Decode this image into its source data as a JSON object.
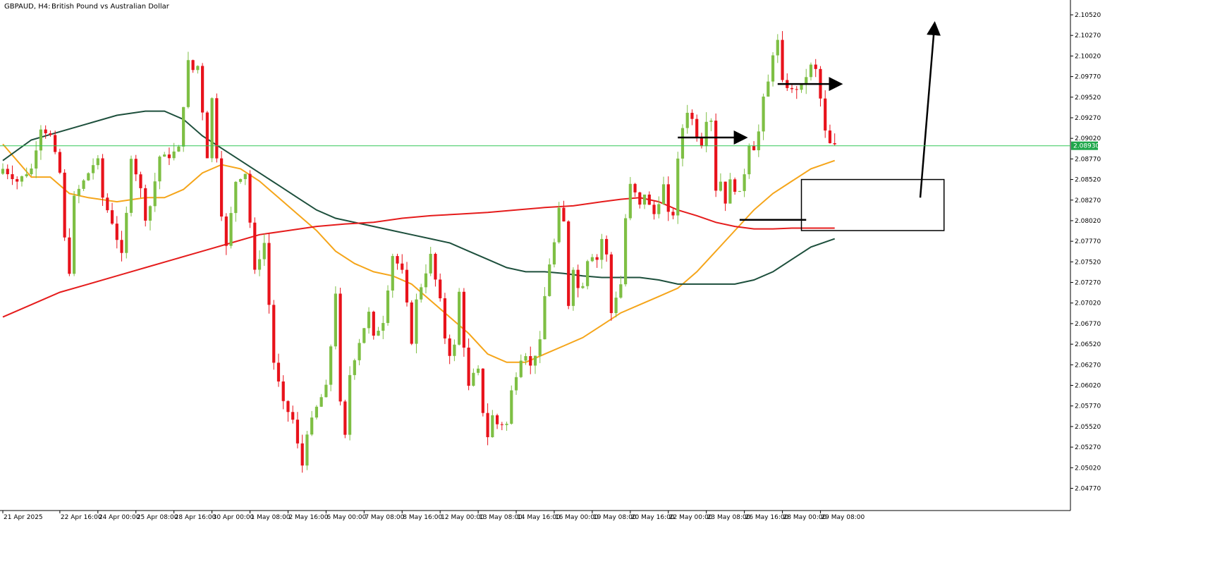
{
  "header": {
    "symbol_label": "GBPAUD, H4:",
    "description": "British Pound vs Australian Dollar"
  },
  "colors": {
    "bull": "#7ebf44",
    "bear": "#e8121b",
    "ma_fast": "#f5a51a",
    "ma_mid": "#1d4f3c",
    "ma_slow": "#e51c1c",
    "current_line": "#34c759",
    "current_tag": "#1fa74b",
    "axis": "#000000",
    "annotation": "#000000"
  },
  "chart_data": {
    "type": "candlestick",
    "title": "GBPAUD, H4: British Pound vs Australian Dollar",
    "ylim": [
      2.045,
      2.107
    ],
    "xlim": [
      0,
      224
    ],
    "grid": false,
    "current_price": 2.0893,
    "current_price_label": "2.08930",
    "y_ticks": [
      {
        "value": 2.1052,
        "label": "2.10520"
      },
      {
        "value": 2.1027,
        "label": "2.10270"
      },
      {
        "value": 2.1002,
        "label": "2.10020"
      },
      {
        "value": 2.0977,
        "label": "2.09770"
      },
      {
        "value": 2.0952,
        "label": "2.09520"
      },
      {
        "value": 2.0927,
        "label": "2.09270"
      },
      {
        "value": 2.0902,
        "label": "2.09020"
      },
      {
        "value": 2.0877,
        "label": "2.08770"
      },
      {
        "value": 2.0852,
        "label": "2.08520"
      },
      {
        "value": 2.0827,
        "label": "2.08270"
      },
      {
        "value": 2.0802,
        "label": "2.08020"
      },
      {
        "value": 2.0777,
        "label": "2.07770"
      },
      {
        "value": 2.0752,
        "label": "2.07520"
      },
      {
        "value": 2.0727,
        "label": "2.07270"
      },
      {
        "value": 2.0702,
        "label": "2.07020"
      },
      {
        "value": 2.0677,
        "label": "2.06770"
      },
      {
        "value": 2.0652,
        "label": "2.06520"
      },
      {
        "value": 2.0627,
        "label": "2.06270"
      },
      {
        "value": 2.0602,
        "label": "2.06020"
      },
      {
        "value": 2.0577,
        "label": "2.05770"
      },
      {
        "value": 2.0552,
        "label": "2.05520"
      },
      {
        "value": 2.0527,
        "label": "2.05270"
      },
      {
        "value": 2.0502,
        "label": "2.05020"
      },
      {
        "value": 2.0477,
        "label": "2.04770"
      }
    ],
    "x_ticks": [
      {
        "index": 0,
        "label": "21 Apr 2025"
      },
      {
        "index": 12,
        "label": "22 Apr 16:00"
      },
      {
        "index": 20,
        "label": "24 Apr 00:00"
      },
      {
        "index": 28,
        "label": "25 Apr 08:00"
      },
      {
        "index": 36,
        "label": "28 Apr 16:00"
      },
      {
        "index": 44,
        "label": "30 Apr 00:00"
      },
      {
        "index": 52,
        "label": "1 May 08:00"
      },
      {
        "index": 60,
        "label": "2 May 16:00"
      },
      {
        "index": 68,
        "label": "6 May 00:00"
      },
      {
        "index": 76,
        "label": "7 May 08:00"
      },
      {
        "index": 84,
        "label": "8 May 16:00"
      },
      {
        "index": 92,
        "label": "12 May 00:00"
      },
      {
        "index": 100,
        "label": "13 May 08:00"
      },
      {
        "index": 108,
        "label": "14 May 16:00"
      },
      {
        "index": 116,
        "label": "16 May 00:00"
      },
      {
        "index": 124,
        "label": "19 May 08:00"
      },
      {
        "index": 132,
        "label": "20 May 16:00"
      },
      {
        "index": 140,
        "label": "22 May 00:00"
      },
      {
        "index": 148,
        "label": "23 May 08:00"
      },
      {
        "index": 156,
        "label": "26 May 16:00"
      },
      {
        "index": 164,
        "label": "28 May 00:00"
      },
      {
        "index": 172,
        "label": "29 May 08:00"
      }
    ],
    "price_path": [
      [
        0,
        2.0865
      ],
      [
        3,
        2.085
      ],
      [
        6,
        2.0865
      ],
      [
        8,
        2.0915
      ],
      [
        10,
        2.0905
      ],
      [
        12,
        2.086
      ],
      [
        13,
        2.078
      ],
      [
        14,
        2.074
      ],
      [
        15,
        2.083
      ],
      [
        17,
        2.085
      ],
      [
        19,
        2.087
      ],
      [
        20,
        2.0875
      ],
      [
        21,
        2.083
      ],
      [
        23,
        2.08
      ],
      [
        25,
        2.076
      ],
      [
        26,
        2.081
      ],
      [
        27,
        2.088
      ],
      [
        29,
        2.084
      ],
      [
        30,
        2.0805
      ],
      [
        31,
        2.082
      ],
      [
        33,
        2.088
      ],
      [
        35,
        2.088
      ],
      [
        37,
        2.089
      ],
      [
        39,
        2.0995
      ],
      [
        40,
        2.0985
      ],
      [
        41,
        2.099
      ],
      [
        43,
        2.088
      ],
      [
        44,
        2.095
      ],
      [
        45,
        2.088
      ],
      [
        46,
        2.081
      ],
      [
        47,
        2.077
      ],
      [
        49,
        2.085
      ],
      [
        51,
        2.086
      ],
      [
        52,
        2.08
      ],
      [
        53,
        2.074
      ],
      [
        55,
        2.0775
      ],
      [
        56,
        2.07
      ],
      [
        57,
        2.063
      ],
      [
        59,
        2.058
      ],
      [
        61,
        2.056
      ],
      [
        62,
        2.053
      ],
      [
        63,
        2.0505
      ],
      [
        64,
        2.0545
      ],
      [
        66,
        2.0575
      ],
      [
        68,
        2.06
      ],
      [
        69,
        2.065
      ],
      [
        70,
        2.0715
      ],
      [
        71,
        2.058
      ],
      [
        72,
        2.054
      ],
      [
        73,
        2.0615
      ],
      [
        75,
        2.0655
      ],
      [
        77,
        2.069
      ],
      [
        78,
        2.066
      ],
      [
        80,
        2.068
      ],
      [
        82,
        2.076
      ],
      [
        84,
        2.074
      ],
      [
        85,
        2.07
      ],
      [
        86,
        2.0655
      ],
      [
        87,
        2.0705
      ],
      [
        89,
        2.074
      ],
      [
        90,
        2.076
      ],
      [
        91,
        2.073
      ],
      [
        92,
        2.0705
      ],
      [
        93,
        2.066
      ],
      [
        94,
        2.064
      ],
      [
        95,
        2.065
      ],
      [
        96,
        2.0715
      ],
      [
        97,
        2.065
      ],
      [
        98,
        2.06
      ],
      [
        99,
        2.0615
      ],
      [
        100,
        2.062
      ],
      [
        101,
        2.057
      ],
      [
        102,
        2.054
      ],
      [
        103,
        2.0565
      ],
      [
        104,
        2.0555
      ],
      [
        106,
        2.0555
      ],
      [
        107,
        2.0595
      ],
      [
        109,
        2.0635
      ],
      [
        110,
        2.064
      ],
      [
        111,
        2.0625
      ],
      [
        112,
        2.064
      ],
      [
        113,
        2.0655
      ],
      [
        114,
        2.071
      ],
      [
        115,
        2.075
      ],
      [
        116,
        2.0775
      ],
      [
        117,
        2.0815
      ],
      [
        118,
        2.08
      ],
      [
        119,
        2.07
      ],
      [
        120,
        2.0745
      ],
      [
        121,
        2.072
      ],
      [
        122,
        2.0725
      ],
      [
        123,
        2.0755
      ],
      [
        124,
        2.076
      ],
      [
        125,
        2.0755
      ],
      [
        126,
        2.078
      ],
      [
        127,
        2.076
      ],
      [
        128,
        2.069
      ],
      [
        129,
        2.071
      ],
      [
        130,
        2.0725
      ],
      [
        131,
        2.0805
      ],
      [
        132,
        2.0845
      ],
      [
        133,
        2.0835
      ],
      [
        134,
        2.082
      ],
      [
        135,
        2.0835
      ],
      [
        136,
        2.082
      ],
      [
        137,
        2.081
      ],
      [
        138,
        2.0825
      ],
      [
        139,
        2.0845
      ],
      [
        140,
        2.081
      ],
      [
        141,
        2.081
      ],
      [
        142,
        2.0875
      ],
      [
        143,
        2.0915
      ],
      [
        144,
        2.0935
      ],
      [
        145,
        2.0925
      ],
      [
        146,
        2.0905
      ],
      [
        147,
        2.0895
      ],
      [
        148,
        2.0925
      ],
      [
        149,
        2.0925
      ],
      [
        150,
        2.084
      ],
      [
        151,
        2.085
      ],
      [
        152,
        2.0825
      ],
      [
        153,
        2.085
      ],
      [
        154,
        2.084
      ],
      [
        155,
        2.0835
      ],
      [
        156,
        2.086
      ],
      [
        157,
        2.0895
      ],
      [
        158,
        2.089
      ],
      [
        159,
        2.091
      ],
      [
        160,
        2.095
      ],
      [
        161,
        2.097
      ],
      [
        162,
        2.1005
      ],
      [
        163,
        2.102
      ],
      [
        164,
        2.097
      ],
      [
        165,
        2.0965
      ],
      [
        166,
        2.096
      ],
      [
        168,
        2.0965
      ],
      [
        170,
        2.099
      ],
      [
        171,
        2.0985
      ],
      [
        172,
        2.095
      ],
      [
        173,
        2.091
      ],
      [
        174,
        2.0895
      ],
      [
        175,
        2.0893
      ]
    ],
    "series": [
      {
        "key": "ma_fast",
        "points": [
          [
            0,
            2.0895
          ],
          [
            6,
            2.0855
          ],
          [
            10,
            2.0855
          ],
          [
            14,
            2.0835
          ],
          [
            18,
            2.083
          ],
          [
            24,
            2.0825
          ],
          [
            30,
            2.083
          ],
          [
            34,
            2.083
          ],
          [
            38,
            2.084
          ],
          [
            42,
            2.086
          ],
          [
            46,
            2.087
          ],
          [
            50,
            2.0865
          ],
          [
            54,
            2.085
          ],
          [
            58,
            2.083
          ],
          [
            62,
            2.081
          ],
          [
            66,
            2.079
          ],
          [
            70,
            2.0765
          ],
          [
            74,
            2.075
          ],
          [
            78,
            2.074
          ],
          [
            82,
            2.0735
          ],
          [
            86,
            2.0725
          ],
          [
            90,
            2.0705
          ],
          [
            94,
            2.0685
          ],
          [
            98,
            2.0665
          ],
          [
            102,
            2.064
          ],
          [
            106,
            2.063
          ],
          [
            110,
            2.063
          ],
          [
            114,
            2.064
          ],
          [
            118,
            2.065
          ],
          [
            122,
            2.066
          ],
          [
            126,
            2.0675
          ],
          [
            130,
            2.069
          ],
          [
            134,
            2.07
          ],
          [
            138,
            2.071
          ],
          [
            142,
            2.072
          ],
          [
            146,
            2.074
          ],
          [
            150,
            2.0765
          ],
          [
            154,
            2.079
          ],
          [
            158,
            2.0815
          ],
          [
            162,
            2.0835
          ],
          [
            166,
            2.085
          ],
          [
            170,
            2.0865
          ],
          [
            175,
            2.0875
          ]
        ]
      },
      {
        "key": "ma_mid",
        "points": [
          [
            0,
            2.0875
          ],
          [
            6,
            2.09
          ],
          [
            12,
            2.091
          ],
          [
            18,
            2.092
          ],
          [
            24,
            2.093
          ],
          [
            30,
            2.0935
          ],
          [
            34,
            2.0935
          ],
          [
            38,
            2.0925
          ],
          [
            42,
            2.0905
          ],
          [
            46,
            2.089
          ],
          [
            50,
            2.0875
          ],
          [
            54,
            2.086
          ],
          [
            58,
            2.0845
          ],
          [
            62,
            2.083
          ],
          [
            66,
            2.0815
          ],
          [
            70,
            2.0805
          ],
          [
            74,
            2.08
          ],
          [
            78,
            2.0795
          ],
          [
            82,
            2.079
          ],
          [
            86,
            2.0785
          ],
          [
            90,
            2.078
          ],
          [
            94,
            2.0775
          ],
          [
            98,
            2.0765
          ],
          [
            102,
            2.0755
          ],
          [
            106,
            2.0745
          ],
          [
            110,
            2.074
          ],
          [
            114,
            2.074
          ],
          [
            118,
            2.0738
          ],
          [
            122,
            2.0735
          ],
          [
            126,
            2.0733
          ],
          [
            130,
            2.0733
          ],
          [
            134,
            2.0733
          ],
          [
            138,
            2.073
          ],
          [
            142,
            2.0725
          ],
          [
            146,
            2.0725
          ],
          [
            150,
            2.0725
          ],
          [
            154,
            2.0725
          ],
          [
            158,
            2.073
          ],
          [
            162,
            2.074
          ],
          [
            166,
            2.0755
          ],
          [
            170,
            2.077
          ],
          [
            175,
            2.078
          ]
        ]
      },
      {
        "key": "ma_slow",
        "points": [
          [
            0,
            2.0685
          ],
          [
            6,
            2.07
          ],
          [
            12,
            2.0715
          ],
          [
            18,
            2.0725
          ],
          [
            24,
            2.0735
          ],
          [
            30,
            2.0745
          ],
          [
            36,
            2.0755
          ],
          [
            42,
            2.0765
          ],
          [
            48,
            2.0775
          ],
          [
            54,
            2.0785
          ],
          [
            60,
            2.079
          ],
          [
            66,
            2.0795
          ],
          [
            72,
            2.0798
          ],
          [
            78,
            2.08
          ],
          [
            84,
            2.0805
          ],
          [
            90,
            2.0808
          ],
          [
            96,
            2.081
          ],
          [
            102,
            2.0812
          ],
          [
            108,
            2.0815
          ],
          [
            114,
            2.0818
          ],
          [
            120,
            2.082
          ],
          [
            126,
            2.0825
          ],
          [
            130,
            2.0828
          ],
          [
            134,
            2.083
          ],
          [
            138,
            2.0825
          ],
          [
            142,
            2.0815
          ],
          [
            146,
            2.0808
          ],
          [
            150,
            2.08
          ],
          [
            154,
            2.0795
          ],
          [
            158,
            2.0792
          ],
          [
            162,
            2.0792
          ],
          [
            166,
            2.0793
          ],
          [
            170,
            2.0793
          ],
          [
            175,
            2.0793
          ]
        ]
      }
    ],
    "annotations": {
      "arrow_1": {
        "from": [
          142,
          2.0903
        ],
        "to": [
          156,
          2.0903
        ]
      },
      "arrow_2": {
        "from": [
          163,
          2.0968
        ],
        "to": [
          176,
          2.0968
        ]
      },
      "line_1": {
        "from": [
          155,
          2.0803
        ],
        "to": [
          169,
          2.0803
        ]
      },
      "box": {
        "x0": 168,
        "x1": 198,
        "y0": 2.0852,
        "y1": 2.079
      },
      "arrow_up": {
        "from": [
          193,
          2.083
        ],
        "to": [
          196,
          2.104
        ]
      }
    }
  }
}
